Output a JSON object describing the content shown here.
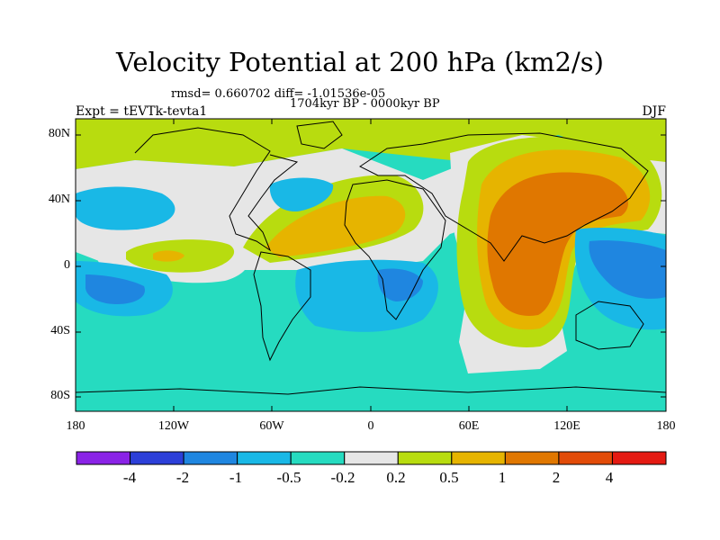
{
  "title": "Velocity Potential at 200 hPa (km2/s)",
  "stats": "rmsd= 0.660702 diff= -1.01536e-05",
  "period": "1704kyr BP - 0000kyr BP",
  "experiment": "Expt = tEVTk-tevta1",
  "season": "DJF",
  "y_ticks": [
    "80N",
    "40N",
    "0",
    "40S",
    "80S"
  ],
  "x_ticks": [
    "180",
    "120W",
    "60W",
    "0",
    "60E",
    "120E",
    "180"
  ],
  "colorbar": {
    "colors": [
      "#8a23e6",
      "#2c3fd8",
      "#1f86e0",
      "#19b8e6",
      "#26dbc0",
      "#e6e6e6",
      "#b8dc0f",
      "#e6b400",
      "#e07700",
      "#e24b08",
      "#e41a12"
    ],
    "labels": [
      "-4",
      "-2",
      "-1",
      "-0.5",
      "-0.2",
      "0.2",
      "0.5",
      "1",
      "2",
      "4"
    ]
  },
  "chart_data": {
    "type": "heatmap",
    "title": "Velocity Potential at 200 hPa (km2/s)",
    "variable": "Velocity Potential",
    "units": "km2/s",
    "level": "200 hPa",
    "season": "DJF",
    "x_ticks": [
      "180",
      "120W",
      "60W",
      "0",
      "60E",
      "120E",
      "180"
    ],
    "y_ticks": [
      "80N",
      "40N",
      "0",
      "40S",
      "80S"
    ],
    "lon_range": [
      -180,
      180
    ],
    "lat_range": [
      -90,
      90
    ],
    "contour_levels": [
      -4,
      -2,
      -1,
      -0.5,
      -0.2,
      0.2,
      0.5,
      1,
      2,
      4
    ],
    "regions": [
      {
        "name": "asia-positive-maximum",
        "value_range": [
          1,
          2
        ]
      },
      {
        "name": "north-africa-atlantic-positive",
        "value_range": [
          0.5,
          1
        ]
      },
      {
        "name": "central-pacific-positive",
        "value_range": [
          0.5,
          1
        ]
      },
      {
        "name": "western-pacific-negative",
        "value_range": [
          -1,
          -0.5
        ]
      },
      {
        "name": "south-atlantic-africa-negative",
        "value_range": [
          -1,
          -0.5
        ]
      },
      {
        "name": "eastern-pacific-negative",
        "value_range": [
          -1,
          -0.5
        ]
      },
      {
        "name": "southern-ocean-background",
        "value_range": [
          -0.5,
          -0.2
        ]
      },
      {
        "name": "arctic-background",
        "value_range": [
          0.2,
          0.5
        ]
      }
    ]
  }
}
